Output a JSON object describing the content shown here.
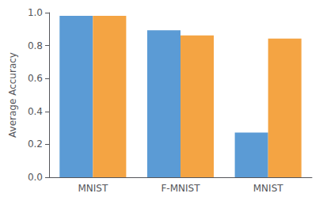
{
  "chart_data": {
    "type": "bar",
    "categories": [
      "MNIST",
      "F-MNIST",
      "MNIST"
    ],
    "series": [
      {
        "color": "#5B9BD5",
        "values": [
          0.981,
          0.893,
          0.272
        ]
      },
      {
        "color": "#F4A443",
        "values": [
          0.981,
          0.862,
          0.842
        ]
      }
    ],
    "ylabel": "Average Accuracy",
    "ylim": [
      0.0,
      1.0
    ],
    "yticks": [
      {
        "value": 0.0,
        "label": "0.0"
      },
      0.2,
      0.4,
      0.6,
      0.8,
      {
        "value": 1.0,
        "label": "1.0"
      }
    ],
    "grid": false
  }
}
